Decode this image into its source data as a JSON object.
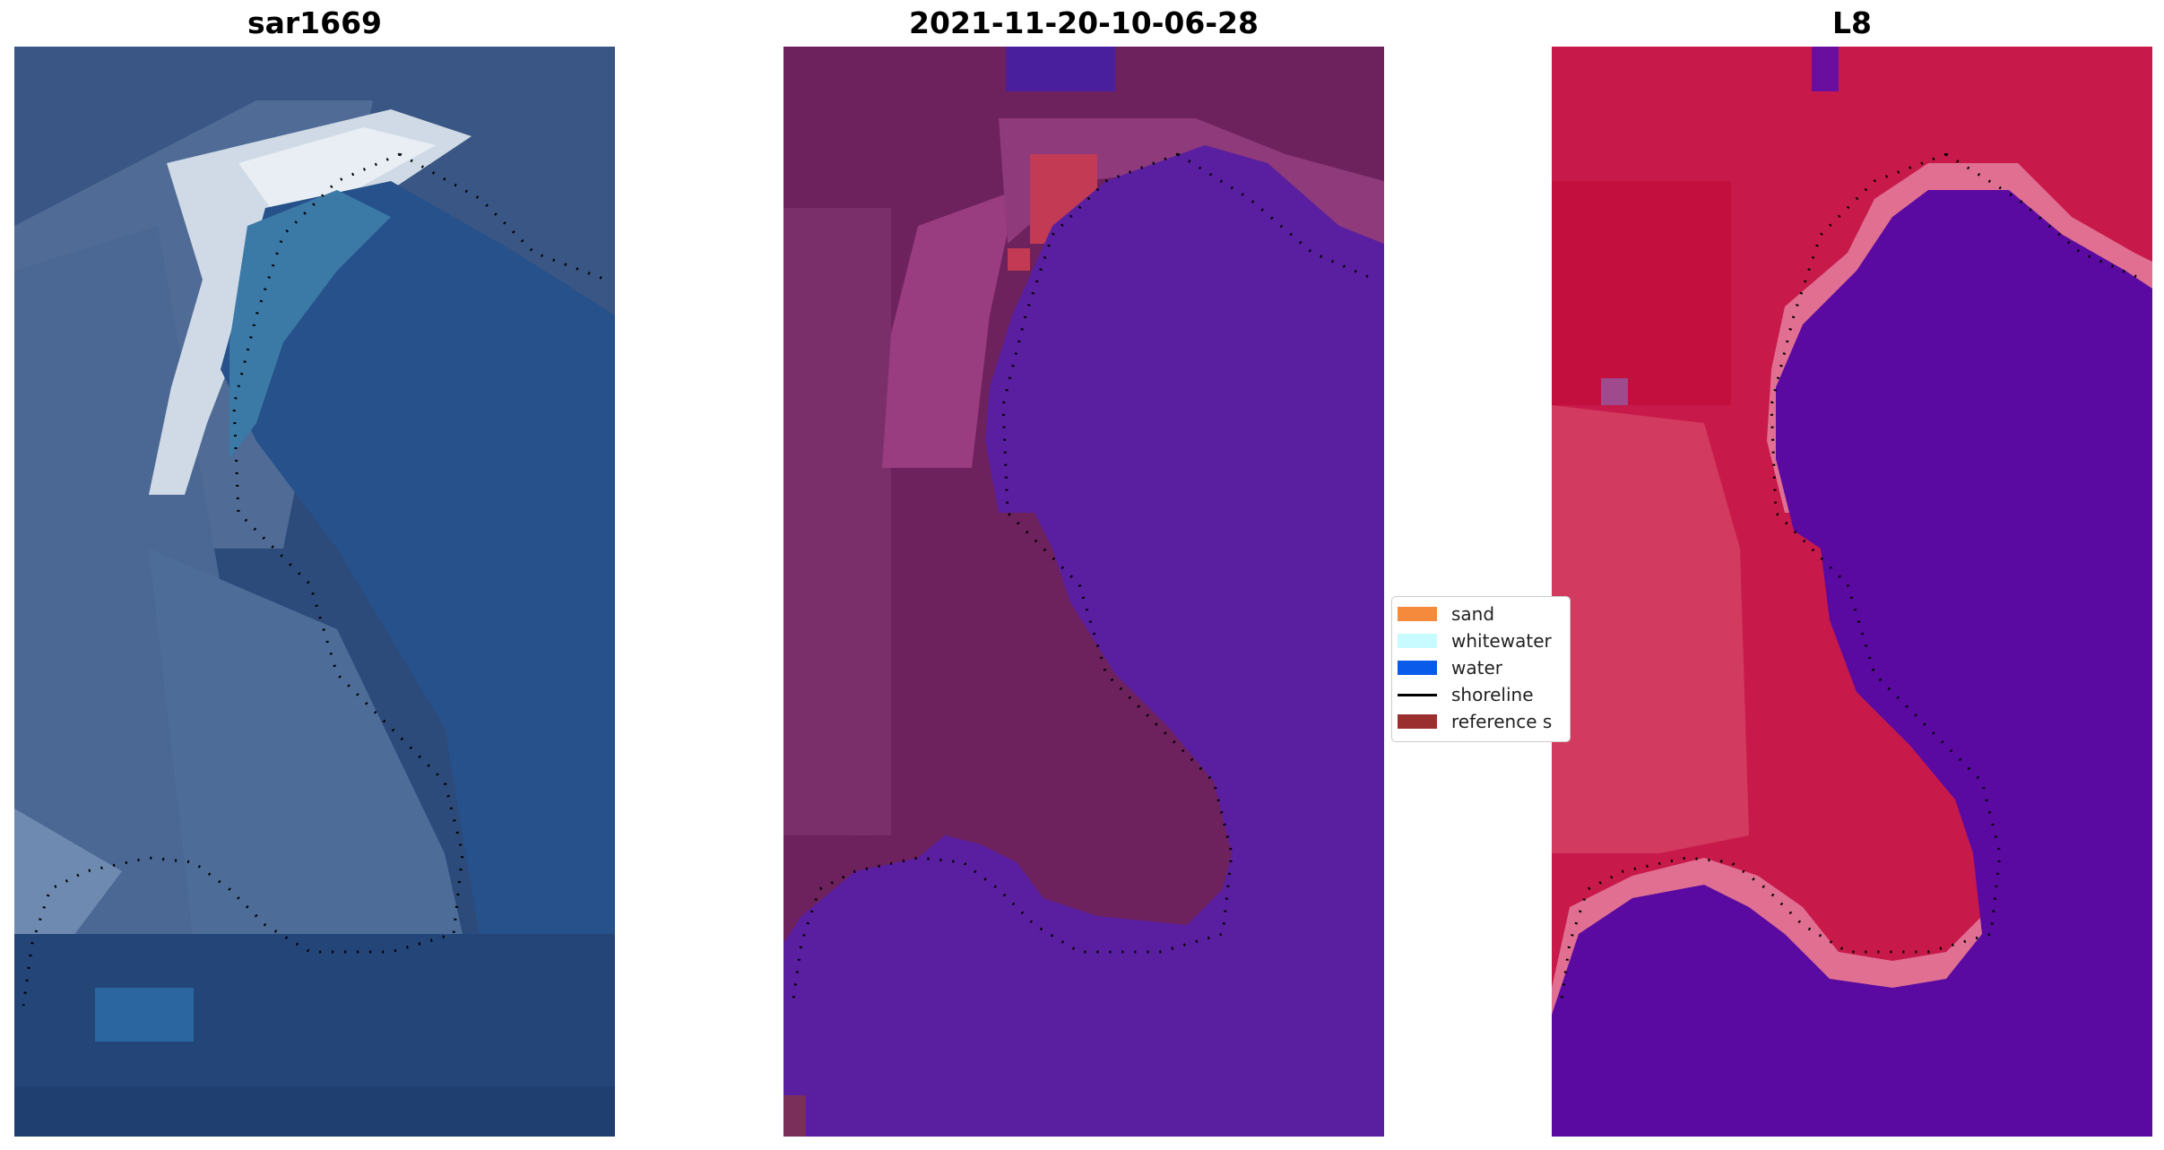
{
  "panels": [
    {
      "id": "rgb",
      "title": "sar1669"
    },
    {
      "id": "classified",
      "title": "2021-11-20-10-06-28"
    },
    {
      "id": "index",
      "title": "L8"
    }
  ],
  "legend": {
    "items": [
      {
        "label": "sand",
        "color": "#f58a3c",
        "kind": "patch"
      },
      {
        "label": "whitewater",
        "color": "#c8fbff",
        "kind": "patch"
      },
      {
        "label": "water",
        "color": "#0a5bea",
        "kind": "patch"
      },
      {
        "label": "shoreline",
        "color": "#000000",
        "kind": "line"
      },
      {
        "label": "reference s",
        "color": "#9b2f2f",
        "kind": "patch"
      }
    ]
  },
  "colors": {
    "rgb_water": "#24467a",
    "rgb_surf": "#e6edf2",
    "class_land": "#6d215d",
    "class_water": "#5a1fa0",
    "index_land": "#c81a4a",
    "index_water": "#5a0aa0"
  }
}
